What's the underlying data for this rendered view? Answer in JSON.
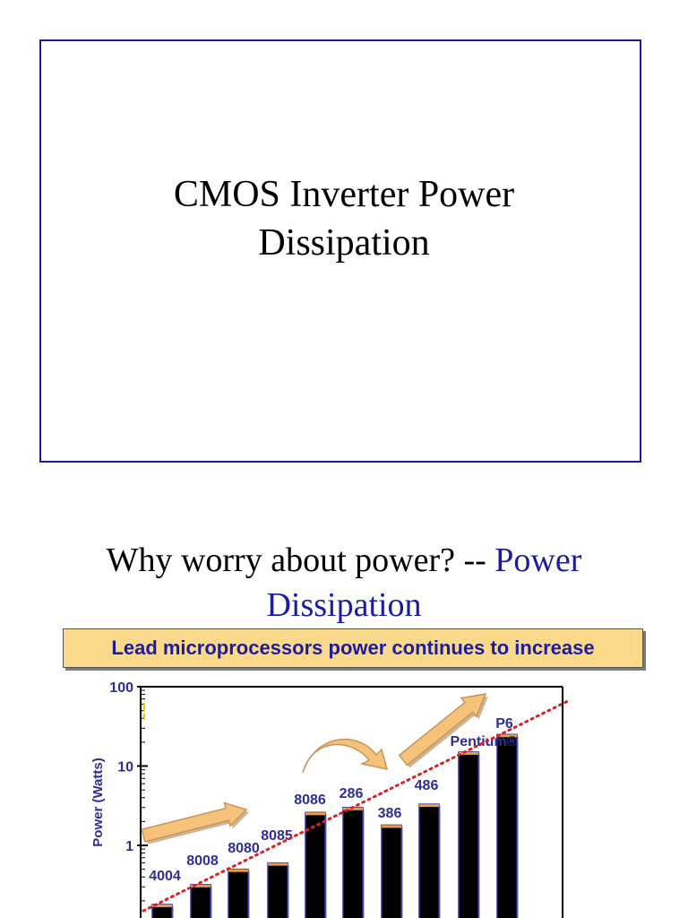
{
  "slide1": {
    "title_line1": "CMOS Inverter Power",
    "title_line2": "Dissipation"
  },
  "slide2": {
    "heading_prefix": "Why worry about power? -- ",
    "heading_accent_line1": "Power",
    "heading_accent_line2": "Dissipation",
    "banner": "Lead microprocessors power continues to increase",
    "accent_color": "#1c1ca0",
    "banner_color": "#fbd98a"
  },
  "chart_data": {
    "type": "bar",
    "title": "",
    "xlabel": "",
    "ylabel": "Power (Watts)",
    "yscale": "log",
    "ylim": [
      0.1,
      100
    ],
    "ytick_labels": [
      "100",
      "10",
      "1"
    ],
    "ytick_values": [
      100,
      10,
      1
    ],
    "grid": false,
    "categories": [
      "4004",
      "8008",
      "8080",
      "8085",
      "8086",
      "286",
      "386",
      "486",
      "",
      "P6 Pentium®"
    ],
    "values": [
      0.18,
      0.32,
      0.5,
      0.6,
      2.6,
      3.0,
      1.8,
      3.3,
      15,
      25
    ],
    "trend": "exponential increase (dotted red line)",
    "colors": {
      "bar": "#000000",
      "bar_outline": "#2e2e9a",
      "bar_cap": "#f0a030",
      "trend": "#dd2020",
      "arrow": "#f5c27a",
      "labels": "#2e2e9a"
    }
  }
}
